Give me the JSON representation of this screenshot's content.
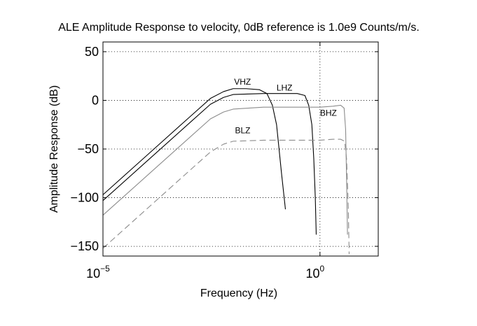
{
  "chart_data": {
    "type": "line",
    "title": "ALE Amplitude Response to velocity, 0dB reference is 1.0e9 Counts/m/s.",
    "xlabel": "Frequency (Hz)",
    "ylabel": "Amplitude Response (dB)",
    "x_scale": "log",
    "xlim": [
      1e-05,
      22
    ],
    "ylim": [
      -160,
      60
    ],
    "x_ticks": [
      {
        "value": 1e-05,
        "base": "10",
        "exp": "−5"
      },
      {
        "value": 1,
        "base": "10",
        "exp": "0"
      }
    ],
    "y_ticks": [
      {
        "value": 50,
        "label": "50"
      },
      {
        "value": 0,
        "label": "0"
      },
      {
        "value": -50,
        "label": "−50"
      },
      {
        "value": -100,
        "label": "−100"
      },
      {
        "value": -150,
        "label": "−150"
      }
    ],
    "grid": true,
    "series": [
      {
        "name": "VHZ",
        "color": "#000000",
        "dash": false,
        "points": [
          [
            1e-05,
            -97
          ],
          [
            0.0001,
            -57
          ],
          [
            0.001,
            -17
          ],
          [
            0.003,
            2
          ],
          [
            0.006,
            9
          ],
          [
            0.01,
            12
          ],
          [
            0.02,
            12
          ],
          [
            0.04,
            11
          ],
          [
            0.06,
            7
          ],
          [
            0.08,
            -5
          ],
          [
            0.1,
            -25
          ],
          [
            0.13,
            -75
          ],
          [
            0.16,
            -112
          ]
        ]
      },
      {
        "name": "LHZ",
        "color": "#000000",
        "dash": false,
        "points": [
          [
            1e-05,
            -103
          ],
          [
            0.0001,
            -63
          ],
          [
            0.001,
            -23
          ],
          [
            0.003,
            -4
          ],
          [
            0.006,
            3
          ],
          [
            0.01,
            6
          ],
          [
            0.05,
            7
          ],
          [
            0.3,
            7
          ],
          [
            0.45,
            5
          ],
          [
            0.55,
            -5
          ],
          [
            0.65,
            -25
          ],
          [
            0.72,
            -60
          ],
          [
            0.78,
            -100
          ],
          [
            0.82,
            -138
          ]
        ]
      },
      {
        "name": "BHZ",
        "color": "#8c8c8c",
        "dash": false,
        "points": [
          [
            1e-05,
            -118
          ],
          [
            0.0001,
            -78
          ],
          [
            0.001,
            -38
          ],
          [
            0.003,
            -19
          ],
          [
            0.006,
            -12
          ],
          [
            0.01,
            -9
          ],
          [
            0.05,
            -7
          ],
          [
            1,
            -7
          ],
          [
            2,
            -6
          ],
          [
            3,
            -5
          ],
          [
            3.6,
            -8
          ],
          [
            3.9,
            -30
          ],
          [
            4.1,
            -80
          ],
          [
            4.3,
            -138
          ]
        ]
      },
      {
        "name": "BLZ",
        "color": "#8c8c8c",
        "dash": true,
        "points": [
          [
            1e-05,
            -152
          ],
          [
            0.0001,
            -112
          ],
          [
            0.001,
            -72
          ],
          [
            0.003,
            -53
          ],
          [
            0.006,
            -45
          ],
          [
            0.01,
            -42
          ],
          [
            0.05,
            -41
          ],
          [
            1,
            -41
          ],
          [
            2,
            -40
          ],
          [
            3,
            -40
          ],
          [
            3.7,
            -42
          ],
          [
            4.1,
            -60
          ],
          [
            4.5,
            -110
          ],
          [
            4.7,
            -158
          ]
        ]
      }
    ],
    "annotations": [
      {
        "text": "VHZ",
        "x": 0.0105,
        "y": 16
      },
      {
        "text": "LHZ",
        "x": 0.1,
        "y": 10
      },
      {
        "text": "BHZ",
        "x": 1.0,
        "y": -16
      },
      {
        "text": "BLZ",
        "x": 0.011,
        "y": -34
      }
    ]
  }
}
